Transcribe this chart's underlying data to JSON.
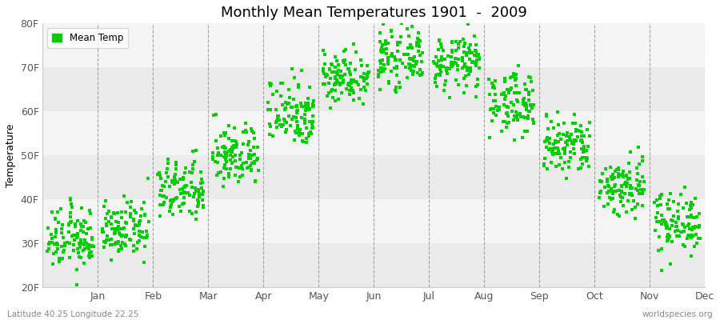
{
  "title": "Monthly Mean Temperatures 1901  -  2009",
  "ylabel": "Temperature",
  "ylim": [
    20,
    80
  ],
  "yticks": [
    20,
    30,
    40,
    50,
    60,
    70,
    80
  ],
  "ytick_labels": [
    "20F",
    "30F",
    "40F",
    "50F",
    "60F",
    "70F",
    "80F"
  ],
  "month_labels": [
    "Jan",
    "Feb",
    "Mar",
    "Apr",
    "May",
    "Jun",
    "Jul",
    "Aug",
    "Sep",
    "Oct",
    "Nov",
    "Dec"
  ],
  "dot_color": "#00CC00",
  "band_colors": [
    "#ebebeb",
    "#f5f5f5"
  ],
  "footer_left": "Latitude 40.25 Longitude 22.25",
  "footer_right": "worldspecies.org",
  "legend_label": "Mean Temp",
  "monthly_mean_temps_F": [
    31,
    33,
    42,
    50,
    60,
    68,
    72,
    71,
    62,
    52,
    43,
    35
  ],
  "monthly_std_F": [
    3.5,
    3.0,
    3.5,
    3.5,
    4.0,
    3.0,
    3.0,
    3.0,
    3.5,
    3.5,
    3.5,
    3.5
  ],
  "n_years": 109
}
